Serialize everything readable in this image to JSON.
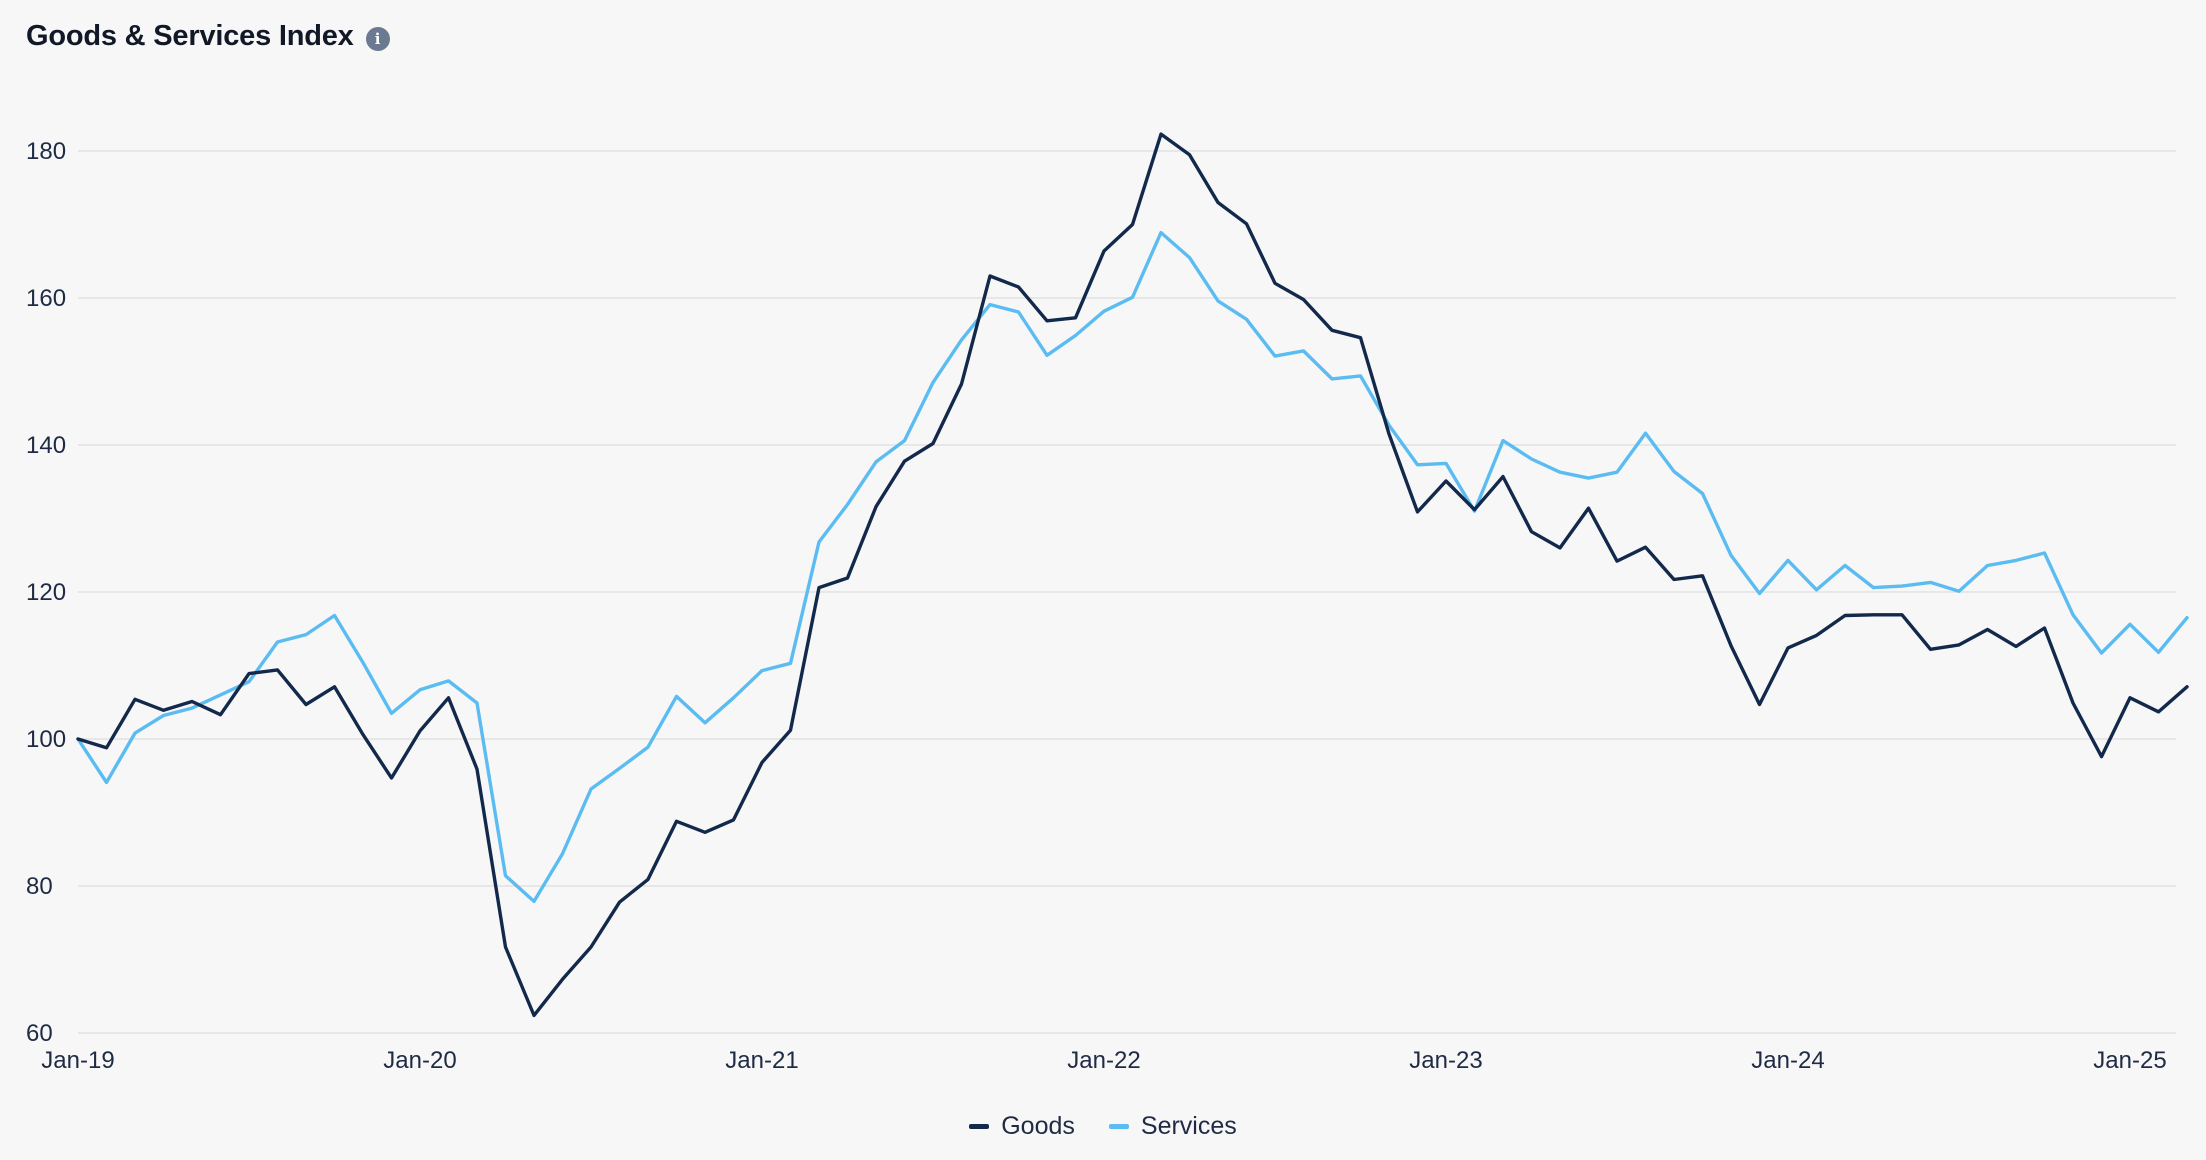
{
  "header": {
    "title": "Goods & Services Index",
    "info_icon": "info-icon"
  },
  "colors": {
    "goods": "#13294b",
    "services": "#5bbcf2",
    "grid": "#e2e2e2"
  },
  "chart_data": {
    "type": "line",
    "title": "Goods & Services Index",
    "xlabel": "",
    "ylabel": "",
    "x_start": "Jan-19",
    "x_interval": "month",
    "x_ticks": [
      "Jan-19",
      "Jan-20",
      "Jan-21",
      "Jan-22",
      "Jan-23",
      "Jan-24",
      "Jan-25"
    ],
    "ylim": [
      60,
      180
    ],
    "y_ticks": [
      60,
      80,
      100,
      120,
      140,
      160,
      180
    ],
    "grid": true,
    "legend_position": "bottom-center",
    "series": [
      {
        "name": "Goods",
        "values": [
          100.0,
          98.8,
          105.4,
          103.9,
          105.1,
          103.3,
          108.9,
          109.4,
          104.7,
          107.1,
          100.6,
          94.7,
          101.1,
          105.6,
          95.9,
          71.7,
          62.4,
          67.3,
          71.7,
          77.8,
          80.9,
          88.8,
          87.3,
          89.0,
          96.8,
          101.2,
          120.6,
          121.9,
          131.6,
          137.8,
          140.2,
          148.3,
          163.0,
          161.5,
          156.9,
          157.3,
          166.4,
          170.0,
          182.3,
          179.5,
          173.0,
          170.1,
          162.0,
          159.8,
          155.6,
          154.6,
          141.5,
          130.9,
          135.1,
          131.2,
          135.7,
          128.2,
          126.0,
          131.4,
          124.2,
          126.1,
          121.7,
          122.2,
          112.7,
          104.7,
          112.4,
          114.1,
          116.8,
          116.9,
          116.9,
          112.2,
          112.8,
          114.9,
          112.6,
          115.1,
          104.9,
          97.6,
          105.6,
          103.7,
          107.1
        ]
      },
      {
        "name": "Services",
        "values": [
          100.0,
          94.1,
          100.8,
          103.2,
          104.2,
          106.0,
          107.8,
          113.2,
          114.2,
          116.8,
          110.4,
          103.5,
          106.7,
          107.9,
          104.9,
          81.4,
          77.9,
          84.4,
          93.2,
          96.0,
          98.9,
          105.8,
          102.2,
          105.6,
          109.3,
          110.3,
          126.8,
          131.9,
          137.7,
          140.6,
          148.5,
          154.3,
          159.1,
          158.1,
          152.2,
          154.9,
          158.2,
          160.1,
          168.9,
          165.5,
          159.6,
          157.1,
          152.1,
          152.8,
          149.0,
          149.4,
          142.7,
          137.3,
          137.5,
          131.0,
          140.6,
          138.1,
          136.3,
          135.5,
          136.3,
          141.6,
          136.4,
          133.4,
          125.0,
          119.8,
          124.3,
          120.3,
          123.6,
          120.6,
          120.8,
          121.3,
          120.1,
          123.6,
          124.3,
          125.3,
          116.9,
          111.7,
          115.6,
          111.8,
          116.5
        ]
      }
    ]
  },
  "legend": [
    {
      "label": "Goods",
      "color": "#13294b"
    },
    {
      "label": "Services",
      "color": "#5bbcf2"
    }
  ]
}
